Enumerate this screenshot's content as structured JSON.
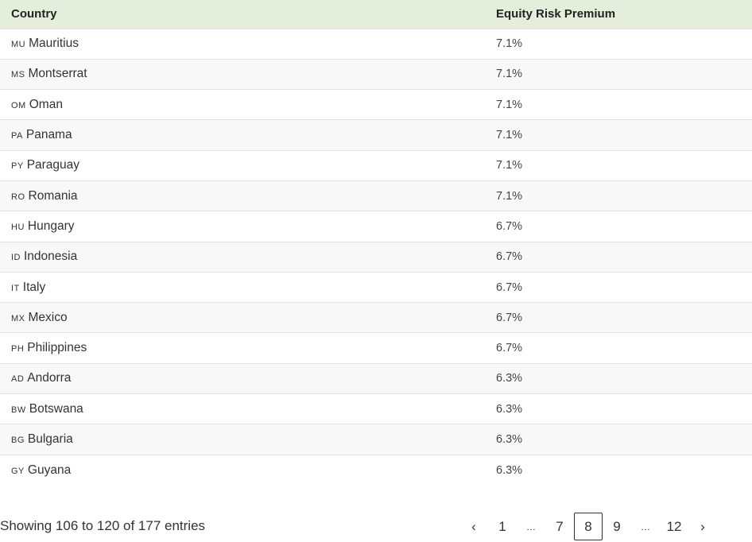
{
  "table": {
    "headers": [
      "Country",
      "Equity Risk Premium"
    ],
    "rows": [
      {
        "code": "MU",
        "country": "Mauritius",
        "erp": "7.1%"
      },
      {
        "code": "MS",
        "country": "Montserrat",
        "erp": "7.1%"
      },
      {
        "code": "OM",
        "country": "Oman",
        "erp": "7.1%"
      },
      {
        "code": "PA",
        "country": "Panama",
        "erp": "7.1%"
      },
      {
        "code": "PY",
        "country": "Paraguay",
        "erp": "7.1%"
      },
      {
        "code": "RO",
        "country": "Romania",
        "erp": "7.1%"
      },
      {
        "code": "HU",
        "country": "Hungary",
        "erp": "6.7%"
      },
      {
        "code": "ID",
        "country": "Indonesia",
        "erp": "6.7%"
      },
      {
        "code": "IT",
        "country": "Italy",
        "erp": "6.7%"
      },
      {
        "code": "MX",
        "country": "Mexico",
        "erp": "6.7%"
      },
      {
        "code": "PH",
        "country": "Philippines",
        "erp": "6.7%"
      },
      {
        "code": "AD",
        "country": "Andorra",
        "erp": "6.3%"
      },
      {
        "code": "BW",
        "country": "Botswana",
        "erp": "6.3%"
      },
      {
        "code": "BG",
        "country": "Bulgaria",
        "erp": "6.3%"
      },
      {
        "code": "GY",
        "country": "Guyana",
        "erp": "6.3%"
      }
    ]
  },
  "info": "Showing 106 to 120 of 177 entries",
  "pagination": {
    "items": [
      "‹",
      "1",
      "…",
      "7",
      "8",
      "9",
      "…",
      "12",
      "›"
    ],
    "current": "8"
  },
  "colors": {
    "header_bg": "#e5eedb"
  }
}
